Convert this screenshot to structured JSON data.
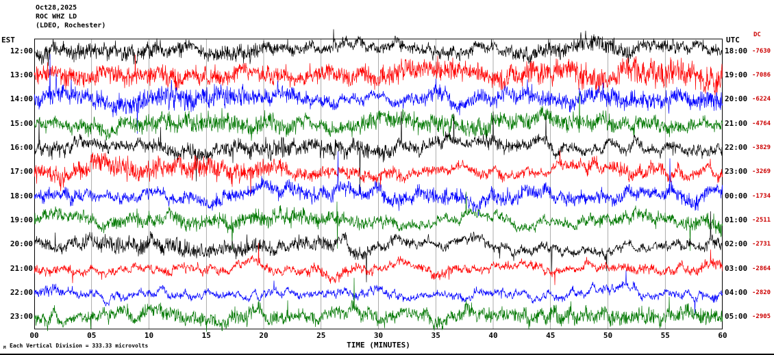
{
  "header": {
    "date": "Oct28,2025",
    "station": "ROC WHZ LD",
    "location": "(LDEO, Rochester)"
  },
  "left_axis_title": "EST",
  "right_axis_title": "UTC",
  "dc_column_title": "DC",
  "x_axis_label": "TIME (MINUTES)",
  "footer": {
    "marker": "M",
    "note": "Each Vertical Division =  333.33 microvolts"
  },
  "colors": {
    "dc_text": "#cc0000",
    "frame": "#000000",
    "grid": "#000000"
  },
  "chart_data": {
    "type": "line",
    "title": "ROC WHZ LD heliplot (seismogram, 12 hourly traces)",
    "xlabel": "TIME (MINUTES)",
    "x_range_minutes": [
      0,
      60
    ],
    "x_ticks": [
      "00",
      "05",
      "10",
      "15",
      "20",
      "25",
      "30",
      "35",
      "40",
      "45",
      "50",
      "55",
      "60"
    ],
    "grid": "vertical lines every 5 minutes",
    "vertical_division_microvolts": 333.33,
    "rows": [
      {
        "est": "12:00",
        "utc": "18:00",
        "dc": "-7630",
        "color": "#000000",
        "amp": 1.3
      },
      {
        "est": "13:00",
        "utc": "19:00",
        "dc": "-7086",
        "color": "#ff0000",
        "amp": 1.35
      },
      {
        "est": "14:00",
        "utc": "20:00",
        "dc": "-6224",
        "color": "#0000ff",
        "amp": 1.15
      },
      {
        "est": "15:00",
        "utc": "21:00",
        "dc": "-4764",
        "color": "#007700",
        "amp": 1.0
      },
      {
        "est": "16:00",
        "utc": "22:00",
        "dc": "-3829",
        "color": "#000000",
        "amp": 1.15
      },
      {
        "est": "17:00",
        "utc": "23:00",
        "dc": "-3269",
        "color": "#ff0000",
        "amp": 1.05
      },
      {
        "est": "18:00",
        "utc": "00:00",
        "dc": "-1734",
        "color": "#0000ff",
        "amp": 1.05
      },
      {
        "est": "19:00",
        "utc": "01:00",
        "dc": "-2511",
        "color": "#007700",
        "amp": 0.9
      },
      {
        "est": "20:00",
        "utc": "02:00",
        "dc": "-2731",
        "color": "#000000",
        "amp": 0.95
      },
      {
        "est": "21:00",
        "utc": "03:00",
        "dc": "-2864",
        "color": "#ff0000",
        "amp": 0.8
      },
      {
        "est": "22:00",
        "utc": "04:00",
        "dc": "-2820",
        "color": "#0000ff",
        "amp": 0.7
      },
      {
        "est": "23:00",
        "utc": "05:00",
        "dc": "-2905",
        "color": "#007700",
        "amp": 0.78
      }
    ]
  }
}
